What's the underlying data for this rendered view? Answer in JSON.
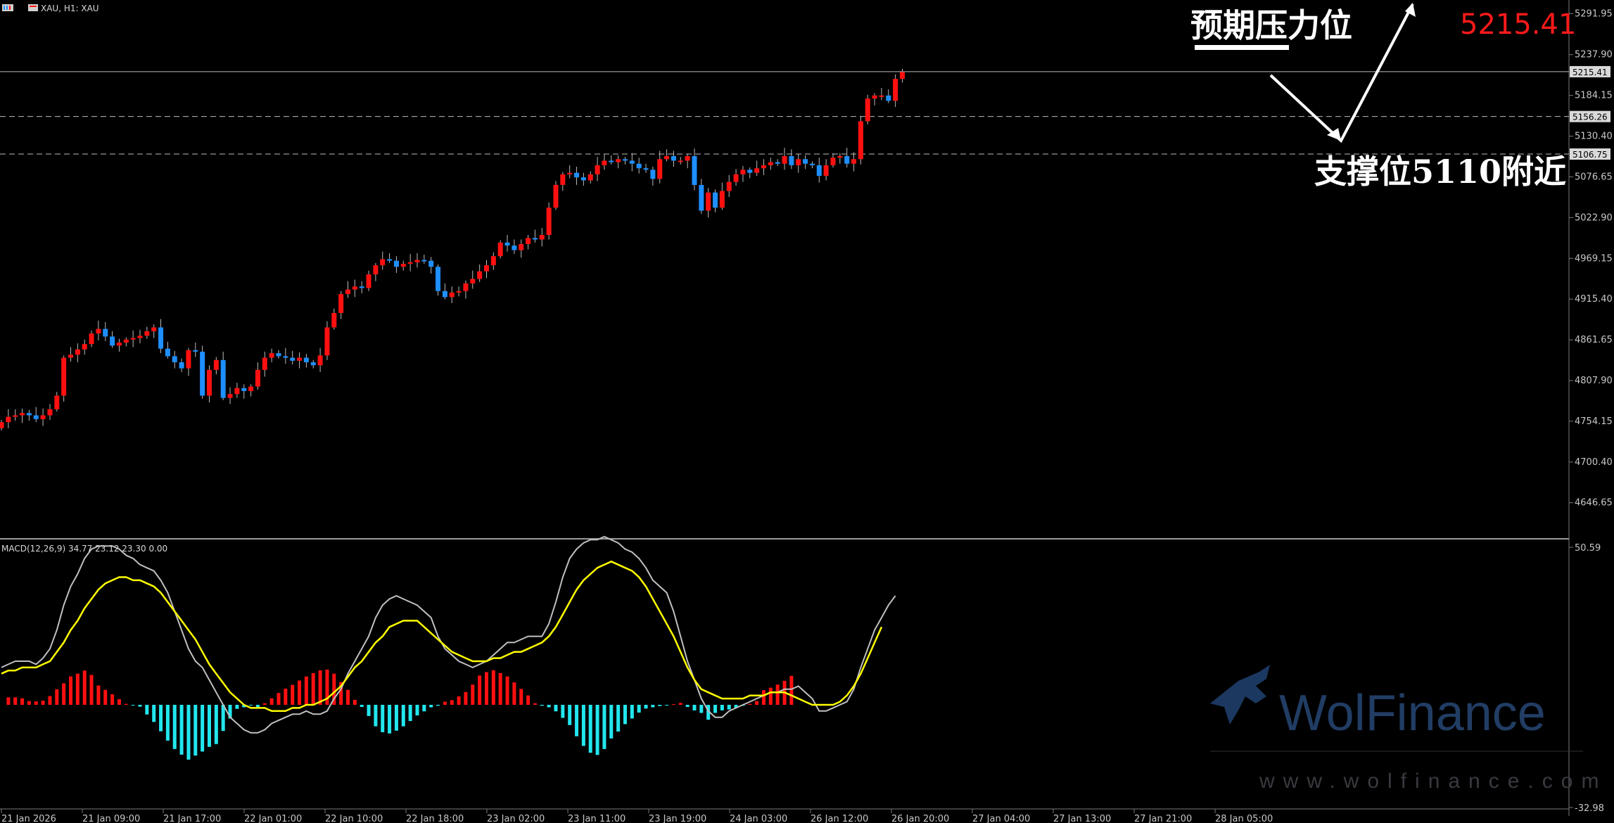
{
  "window": {
    "title": "XAU, H1: XAU"
  },
  "colors": {
    "bull": "#ff1010",
    "bear": "#1e8fff",
    "macd_line": "#c0c0c0",
    "signal_line": "#ffff00",
    "hist_pos": "#ff1010",
    "hist_neg": "#22e6ee",
    "annotation": "#ffffff",
    "price_big": "#ff1a1a"
  },
  "annotations": {
    "resistance": "预期压力位",
    "support": "支撑位5110附近",
    "current_price": "5215.41"
  },
  "watermark": {
    "brand": "WolFinance",
    "url": "www.wolfinance.com"
  },
  "price_labels": {
    "current": "5215.41",
    "line_a": "5156.26",
    "line_b": "5106.75"
  },
  "chart_data": [
    {
      "type": "candlestick",
      "title": "XAU, H1",
      "ylim": [
        4600,
        5310
      ],
      "y_ticks": [
        "5291.95",
        "5237.90",
        "5184.15",
        "5130.40",
        "5076.65",
        "5022.90",
        "4969.15",
        "4915.40",
        "4861.65",
        "4807.90",
        "4754.15",
        "4700.40",
        "4646.65"
      ],
      "x_ticks": [
        "21 Jan 2026",
        "21 Jan 09:00",
        "21 Jan 17:00",
        "22 Jan 01:00",
        "22 Jan 10:00",
        "22 Jan 18:00",
        "23 Jan 02:00",
        "23 Jan 11:00",
        "23 Jan 19:00",
        "24 Jan 03:00",
        "26 Jan 12:00",
        "26 Jan 20:00",
        "27 Jan 04:00",
        "27 Jan 13:00",
        "27 Jan 21:00",
        "28 Jan 05:00"
      ],
      "horizontal_lines": [
        {
          "value": 5215.41,
          "style": "solid"
        },
        {
          "value": 5156.26,
          "style": "dashed"
        },
        {
          "value": 5106.75,
          "style": "dashed"
        }
      ],
      "close": [
        4753,
        4760,
        4762,
        4765,
        4762,
        4757,
        4762,
        4770,
        4788,
        4838,
        4842,
        4849,
        4856,
        4870,
        4876,
        4866,
        4854,
        4858,
        4862,
        4864,
        4867,
        4873,
        4878,
        4850,
        4840,
        4832,
        4824,
        4848,
        4846,
        4788,
        4822,
        4835,
        4785,
        4790,
        4798,
        4794,
        4800,
        4822,
        4838,
        4844,
        4840,
        4838,
        4834,
        4838,
        4832,
        4828,
        4841,
        4878,
        4897,
        4922,
        4928,
        4932,
        4930,
        4948,
        4960,
        4968,
        4966,
        4958,
        4962,
        4964,
        4967,
        4966,
        4958,
        4926,
        4918,
        4924,
        4926,
        4936,
        4942,
        4952,
        4960,
        4972,
        4990,
        4986,
        4980,
        4988,
        4996,
        4994,
        5000,
        5036,
        5066,
        5080,
        5082,
        5076,
        5072,
        5080,
        5092,
        5098,
        5096,
        5100,
        5098,
        5094,
        5088,
        5086,
        5074,
        5100,
        5104,
        5098,
        5098,
        5104,
        5066,
        5032,
        5056,
        5036,
        5058,
        5070,
        5080,
        5086,
        5082,
        5088,
        5092,
        5096,
        5094,
        5104,
        5092,
        5100,
        5094,
        5092,
        5078,
        5092,
        5102,
        5104,
        5094,
        5100,
        5150,
        5180,
        5184,
        5184,
        5177,
        5206,
        5215
      ],
      "macd": {
        "title": "MACD(12,26,9) 34.77 23.12 23.30 0.00",
        "ylim": [
          -32.98,
          50.59
        ],
        "y_ticks": [
          "50.59",
          "-32.98"
        ],
        "main_line": [
          12,
          13,
          14,
          14,
          14,
          13,
          15,
          18,
          24,
          32,
          38,
          42,
          47,
          50,
          51,
          51,
          51,
          50,
          48,
          47,
          45,
          44,
          43,
          40,
          36,
          30,
          24,
          18,
          14,
          12,
          8,
          4,
          0,
          -4,
          -6,
          -8,
          -9,
          -9,
          -8,
          -6,
          -5,
          -4,
          -3,
          -3,
          -2,
          -3,
          -3,
          -2,
          2,
          5,
          10,
          14,
          18,
          22,
          28,
          32,
          34,
          35,
          34,
          33,
          32,
          30,
          28,
          22,
          18,
          16,
          14,
          13,
          12,
          13,
          14,
          16,
          18,
          20,
          20,
          21,
          22,
          22,
          22,
          26,
          33,
          41,
          47,
          50,
          52,
          53,
          53,
          54,
          53,
          52,
          50,
          49,
          47,
          44,
          40,
          38,
          36,
          30,
          22,
          14,
          8,
          2,
          -2,
          -4,
          -4,
          -2,
          -1,
          0,
          1,
          2,
          3,
          4,
          4,
          5,
          5,
          6,
          4,
          2,
          -2,
          -2,
          -1,
          0,
          1,
          5,
          12,
          18,
          24,
          28,
          32,
          35
        ],
        "signal_line": [
          10,
          11,
          11,
          12,
          12,
          12,
          13,
          14,
          17,
          20,
          24,
          27,
          31,
          34,
          37,
          39,
          40,
          41,
          41,
          40,
          40,
          39,
          38,
          36,
          33,
          30,
          27,
          24,
          21,
          17,
          13,
          10,
          7,
          4,
          2,
          0,
          -1,
          -1,
          -1,
          -2,
          -2,
          -2,
          -1,
          -1,
          0,
          0,
          1,
          2,
          4,
          6,
          9,
          12,
          14,
          17,
          20,
          22,
          25,
          26,
          27,
          27,
          27,
          25,
          23,
          21,
          19,
          17,
          16,
          15,
          14,
          14,
          14,
          15,
          15,
          16,
          17,
          17,
          18,
          19,
          20,
          22,
          25,
          29,
          33,
          37,
          40,
          42,
          44,
          45,
          46,
          45,
          44,
          43,
          41,
          38,
          34,
          30,
          26,
          22,
          17,
          12,
          8,
          5,
          4,
          3,
          2,
          2,
          2,
          2,
          3,
          3,
          3,
          4,
          4,
          4,
          3,
          2,
          1,
          0,
          0,
          0,
          0,
          1,
          3,
          6,
          10,
          15,
          20,
          25
        ],
        "histogram": [
          2.4,
          2.4,
          2.1,
          1.2,
          1.1,
          1.3,
          2.8,
          5.0,
          6.9,
          9.1,
          10.0,
          11.0,
          9.6,
          6.2,
          4.8,
          3.4,
          1.8,
          0.3,
          -0.1,
          -0.6,
          -3.1,
          -5.5,
          -8.5,
          -11.5,
          -14.2,
          -16.0,
          -17.6,
          -16.3,
          -15.0,
          -13.5,
          -12.6,
          -8.4,
          -4.4,
          -1.3,
          -0.8,
          -0.1,
          -1.0,
          0.5,
          2.1,
          3.8,
          5.2,
          6.4,
          7.8,
          9.1,
          10.2,
          11.1,
          11.3,
          10.0,
          7.3,
          4.8,
          1.6,
          -0.7,
          -3.6,
          -6.9,
          -8.8,
          -9.2,
          -8.3,
          -6.9,
          -5.2,
          -3.4,
          -2.1,
          -0.8,
          -0.3,
          1.0,
          1.5,
          2.7,
          4.1,
          6.5,
          9.4,
          10.5,
          11.1,
          10.2,
          9.1,
          7.2,
          5.1,
          3.0,
          0.5,
          -0.3,
          -0.8,
          -2.1,
          -4.2,
          -6.5,
          -10.1,
          -13.2,
          -15.4,
          -16.1,
          -14.2,
          -10.8,
          -8.6,
          -6.2,
          -4.4,
          -2.5,
          -1.2,
          -0.8,
          -0.4,
          -0.2,
          0.2,
          0.6,
          -0.7,
          -1.8,
          -2.6,
          -4.8,
          -2.6,
          -1.8,
          -1.5,
          -1.0,
          -0.3,
          0.3,
          1.2,
          4.7,
          5.5,
          6.5,
          7.7,
          9.3
        ],
        "histogram_x_offset": 1
      }
    }
  ]
}
